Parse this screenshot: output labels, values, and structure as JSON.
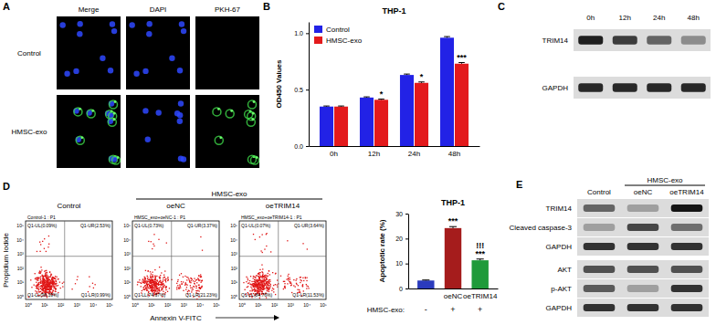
{
  "panel_labels": [
    "A",
    "B",
    "C",
    "D",
    "E"
  ],
  "microscopy": {
    "columns": [
      "Merge",
      "DAPI",
      "PKH-67"
    ],
    "rows": [
      "Control",
      "HMSC-exo"
    ]
  },
  "chart_data": [
    {
      "type": "bar",
      "title": "THP-1",
      "y_label": "OD450 Values",
      "categories": [
        "0h",
        "12h",
        "24h",
        "48h"
      ],
      "series": [
        {
          "name": "Control",
          "color": "#2222e6",
          "values": [
            0.35,
            0.43,
            0.63,
            0.96
          ],
          "errors": [
            0.005,
            0.006,
            0.008,
            0.01
          ]
        },
        {
          "name": "HMSC-exo",
          "color": "#e31a1c",
          "values": [
            0.35,
            0.41,
            0.56,
            0.73
          ],
          "errors": [
            0.005,
            0.006,
            0.008,
            0.01
          ],
          "significance": [
            null,
            "*",
            "*",
            "***"
          ]
        }
      ],
      "ylim": [
        0,
        1.1
      ],
      "yticks": [
        {
          "value": 0,
          "label": "0.0"
        },
        {
          "value": 0.5,
          "label": "0.5"
        },
        {
          "value": 1,
          "label": "1.0"
        }
      ],
      "legend": "upper left"
    },
    {
      "type": "bar",
      "title": "THP-1",
      "y_label": "Apoptotic rate (%)",
      "categories": [
        null,
        "oeNC",
        "oeTRIM14"
      ],
      "values": [
        3.2,
        24.2,
        11.3
      ],
      "errors": [
        0.2,
        0.6,
        0.5
      ],
      "colors": [
        "#2b3bbd",
        "#a51c1c",
        "#1f9a3a"
      ],
      "significance": [
        null,
        "***",
        "***"
      ],
      "significance_vs_oeNC": [
        null,
        null,
        "!!!"
      ],
      "treatment_label": "HMSC-exo:",
      "treatment": [
        "-",
        "+",
        "+"
      ],
      "ylim": [
        0,
        30
      ],
      "yticks": [
        0,
        10,
        20,
        30
      ]
    }
  ],
  "blot_c": {
    "lanes": [
      "0h",
      "12h",
      "24h",
      "48h"
    ],
    "rows": [
      "TRIM14",
      "GAPDH"
    ],
    "intensity": [
      [
        0.95,
        0.8,
        0.6,
        0.4
      ],
      [
        0.9,
        0.9,
        0.9,
        0.9
      ]
    ]
  },
  "flow": {
    "y_label": "Propidium Iodide",
    "x_label": "Annexin V-FITC",
    "group_label": "HMSC-exo",
    "axis_ticks": [
      "10⁰",
      "10¹",
      "10²",
      "10³",
      "10⁴",
      "10⁵"
    ],
    "plots": [
      {
        "group": "Control",
        "header": "Control-1 : P1",
        "quadrants": [
          "Q1-UL(0.09%)",
          "Q1-UR(2.53%)",
          "Q1-LL(96.39%)",
          "Q1-LR(0.99%)"
        ]
      },
      {
        "group": "oeNC",
        "header": "HMSC_exo+oeNC-1 : P1",
        "quadrants": [
          "Q1-UL(0.73%)",
          "Q1-UR(3.37%)",
          "Q1-LL(74.67%)",
          "Q1-LR(21.23%)"
        ]
      },
      {
        "group": "oeTRIM14",
        "header": "HMSC_exo+oeTRIM14-1 : P1",
        "quadrants": [
          "Q1-UL(0.07%)",
          "Q1-UR(3.64%)",
          "Q1-LL(84.76%)",
          "Q1-LR(11.53%)"
        ]
      }
    ]
  },
  "blot_e": {
    "group_label": "HMSC-exo",
    "lanes": [
      "Control",
      "oeNC",
      "oeTRIM14"
    ],
    "rows": [
      "TRIM14",
      "Cleaved caspase-3",
      "GAPDH",
      "AKT",
      "p-AKT",
      "GAPDH"
    ],
    "intensity": [
      [
        0.6,
        0.3,
        1.0
      ],
      [
        0.3,
        0.75,
        0.55
      ],
      [
        0.85,
        0.85,
        0.85
      ],
      [
        0.7,
        0.7,
        0.7
      ],
      [
        0.65,
        0.3,
        0.85
      ],
      [
        0.85,
        0.85,
        0.85
      ]
    ]
  }
}
